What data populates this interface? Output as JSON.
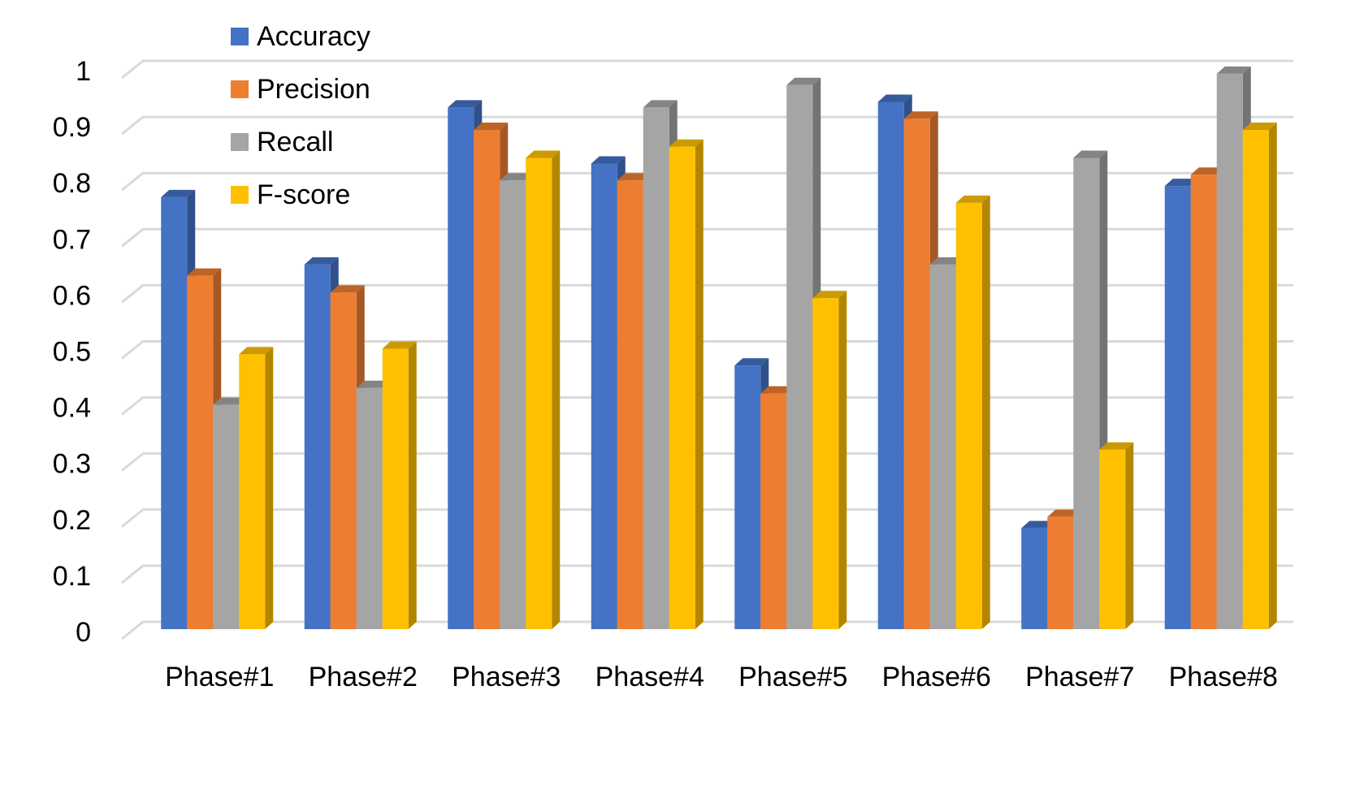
{
  "chart_data": {
    "type": "bar3d",
    "categories": [
      "Phase#1",
      "Phase#2",
      "Phase#3",
      "Phase#4",
      "Phase#5",
      "Phase#6",
      "Phase#7",
      "Phase#8"
    ],
    "series": [
      {
        "name": "Accuracy",
        "color": "#4472c4",
        "values": [
          0.77,
          0.65,
          0.93,
          0.83,
          0.47,
          0.94,
          0.18,
          0.79
        ]
      },
      {
        "name": "Precision",
        "color": "#ed7d31",
        "values": [
          0.63,
          0.6,
          0.89,
          0.8,
          0.42,
          0.91,
          0.2,
          0.81
        ]
      },
      {
        "name": "Recall",
        "color": "#a5a5a5",
        "values": [
          0.4,
          0.43,
          0.8,
          0.93,
          0.97,
          0.65,
          0.84,
          0.99
        ]
      },
      {
        "name": "F-score",
        "color": "#ffc000",
        "values": [
          0.49,
          0.5,
          0.84,
          0.86,
          0.59,
          0.76,
          0.32,
          0.89
        ]
      }
    ],
    "ylim": [
      0,
      1
    ],
    "yticks": [
      0,
      0.1,
      0.2,
      0.3,
      0.4,
      0.5,
      0.6,
      0.7,
      0.8,
      0.9,
      1
    ],
    "grid": true,
    "legend": "top-left"
  }
}
